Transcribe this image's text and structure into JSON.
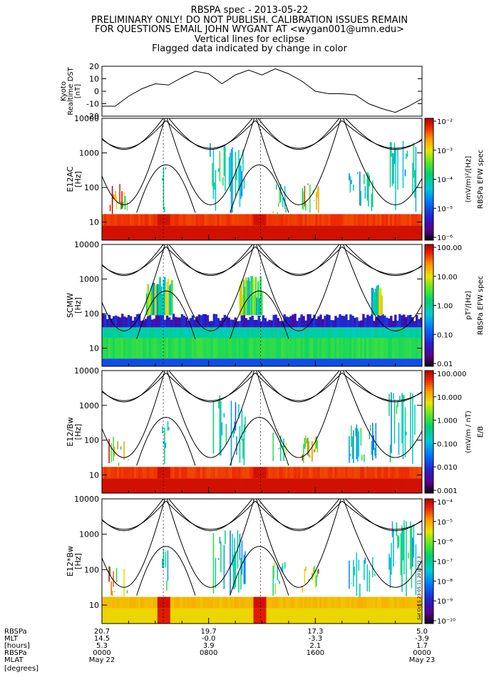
{
  "header": {
    "title": "RBSPA spec - 2013-05-22",
    "line2": "PRELIMINARY ONLY! DO NOT PUBLISH. CALIBRATION ISSUES REMAIN",
    "line3": "FOR QUESTIONS EMAIL JOHN WYGANT AT <wygan001@umn.edu>",
    "line4": "Vertical lines for eclipse",
    "line5": "Flagged data indicated by change in color"
  },
  "side_stamp": "Sat Oct 5 23:05:11 2013 V2.3",
  "chart_data": [
    {
      "type": "line",
      "panel": "dst",
      "ylabel": [
        "Kyoto",
        "Realtime DST",
        "[nT]"
      ],
      "ylim": [
        -20,
        20
      ],
      "yticks": [
        "20",
        "10",
        "0",
        "-10",
        "-20"
      ],
      "x": [
        0,
        1,
        2,
        3,
        4,
        5,
        6,
        7,
        8,
        9,
        10,
        11,
        12,
        13,
        14,
        15,
        16,
        17,
        18,
        19,
        20,
        21,
        22,
        23,
        24
      ],
      "values": [
        -12,
        -12,
        -4,
        2,
        6,
        5,
        11,
        16,
        14,
        6,
        13,
        17,
        13,
        18,
        14,
        8,
        0,
        -2,
        -2,
        -3,
        -10,
        -14,
        -17,
        -12,
        -6
      ]
    },
    {
      "type": "heatmap",
      "panel": "e12ac",
      "ylabel": [
        "E12AC",
        "[Hz]"
      ],
      "yscale": "log",
      "ylim": [
        3,
        10000
      ],
      "yticks": [
        "10000",
        "1000",
        "100",
        "10"
      ],
      "colorbar": {
        "title": "RBSPa EFW spec",
        "units": "(mV/m)²/[Hz]",
        "ticks": [
          "10⁻²",
          "10⁻³",
          "10⁻⁴",
          "10⁻⁵",
          "10⁻⁶"
        ]
      }
    },
    {
      "type": "heatmap",
      "panel": "scmw",
      "ylabel": [
        "SCMW",
        "[Hz]"
      ],
      "yscale": "log",
      "ylim": [
        3,
        10000
      ],
      "yticks": [
        "10000",
        "1000",
        "100",
        "10"
      ],
      "colorbar": {
        "title": "RBSPa EFW spec",
        "units": "pT²/[Hz]",
        "ticks": [
          "100.00",
          "10.00",
          "1.00",
          "0.10",
          "0.01"
        ]
      }
    },
    {
      "type": "heatmap",
      "panel": "e12_over_bw",
      "ylabel": [
        "E12/Bw",
        "[Hz]"
      ],
      "yscale": "log",
      "ylim": [
        3,
        10000
      ],
      "yticks": [
        "10000",
        "1000",
        "100",
        "10"
      ],
      "colorbar": {
        "title": "E/B",
        "units": "(mV/m / nT)",
        "ticks": [
          "100.000",
          "10.000",
          "1.000",
          "0.100",
          "0.010",
          "0.001"
        ]
      }
    },
    {
      "type": "heatmap",
      "panel": "e12_times_bw",
      "ylabel": [
        "E12*Bw",
        "[Hz]"
      ],
      "yscale": "log",
      "ylim": [
        3,
        10000
      ],
      "yticks": [
        "10000",
        "1000",
        "100",
        "10"
      ],
      "colorbar": {
        "title": "",
        "units": "",
        "ticks": [
          "10⁻⁴",
          "10⁻⁵",
          "10⁻⁶",
          "10⁻⁷",
          "10⁻⁸",
          "10⁻⁹",
          "10⁻¹⁰"
        ]
      }
    }
  ],
  "footer": {
    "row_labels": [
      "RBSPa",
      "MLT",
      "[hours]",
      "RBSPa",
      "MLAT",
      "[degrees]"
    ],
    "columns": [
      {
        "rbspa": "20.7",
        "mlt": "14.5",
        "hours": "5.3",
        "rbspa2": "0000",
        "mlat": "May 22"
      },
      {
        "rbspa": "19.7",
        "mlt": "-0.0",
        "hours": "3.9",
        "rbspa2": "0800",
        "mlat": ""
      },
      {
        "rbspa": "17.3",
        "mlt": "-3.3",
        "hours": "2.1",
        "rbspa2": "1600",
        "mlat": ""
      },
      {
        "rbspa": "5.0",
        "mlt": "-3.9",
        "hours": "1.7",
        "rbspa2": "0000",
        "mlat": "May 23"
      }
    ]
  }
}
